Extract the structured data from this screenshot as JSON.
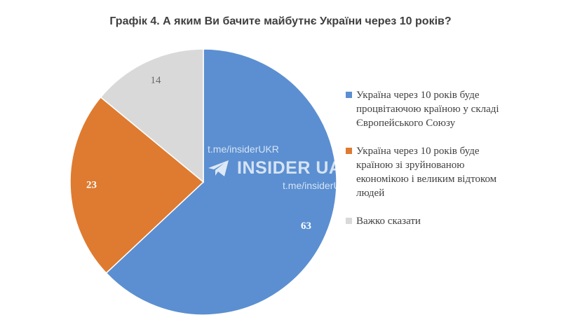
{
  "chart_data": {
    "type": "pie",
    "title": "Графік 4. А яким Ви бачите майбутнє України через 10 років?",
    "slices": [
      {
        "name": "Україна через 10 років буде процвітаючою країною у складі Європейського Союзу",
        "value": 63,
        "label": "63",
        "color": "#5b8fd1"
      },
      {
        "name": "Україна через 10 років буде країною зі зруйнованою економікою і великим відтоком людей",
        "value": 23,
        "label": "23",
        "color": "#de7b30"
      },
      {
        "name": "Важко сказати",
        "value": 14,
        "label": "14",
        "color": "#d9d9d9"
      }
    ],
    "legend": "right"
  },
  "watermark": {
    "channel_top": "t.me/insiderUKR",
    "brand": "INSIDER UA",
    "channel_bottom": "t.me/insiderUKR",
    "icon": "telegram-plane-icon"
  }
}
